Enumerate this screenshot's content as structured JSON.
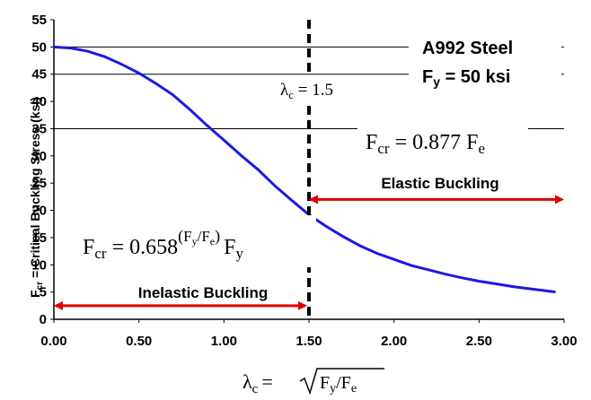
{
  "chart_data": {
    "type": "line",
    "xlim": [
      0,
      3.0
    ],
    "ylim": [
      0,
      55
    ],
    "x_ticks": [
      "0.00",
      "0.50",
      "1.00",
      "1.50",
      "2.00",
      "2.50",
      "3.00"
    ],
    "y_ticks": [
      "0",
      "5",
      "10",
      "15",
      "20",
      "25",
      "30",
      "35",
      "40",
      "45",
      "50",
      "55"
    ],
    "gridlines_y": [
      35,
      45,
      50
    ],
    "grid": "horizontal lines at 35, 45, 50",
    "ylabel_main": "F",
    "ylabel_sub": "cr",
    "ylabel_rest": " = Critical Buckling Stress (ksi)",
    "xlabel_lambda": "λ",
    "xlabel_sub": "c",
    "xlabel_eq": "=",
    "xlabel_radicand_f1": "F",
    "xlabel_radicand_s1": "y",
    "xlabel_radicand_mid": "/F",
    "xlabel_radicand_s2": "e",
    "material_title": "A992 Steel",
    "fy_label_main": "F",
    "fy_label_sub": "y",
    "fy_label_value": " = 50 ksi",
    "divider_label_lambda": "λ",
    "divider_label_sub": "c",
    "divider_label_value": " = 1.5",
    "divider_x": 1.5,
    "elastic_eq_f": "F",
    "elastic_eq_sub": "cr",
    "elastic_eq_rhs": " = 0.877 F",
    "elastic_eq_rhs_sub": "e",
    "inelastic_eq_f": "F",
    "inelastic_eq_sub": "cr",
    "inelastic_eq_rhs": " = 0.658",
    "inelastic_exp_open": "(",
    "inelastic_exp_f1": "F",
    "inelastic_exp_s1": "y",
    "inelastic_exp_mid": "/F",
    "inelastic_exp_s2": "e",
    "inelastic_exp_close": ")",
    "inelastic_tail_f": "F",
    "inelastic_tail_sub": "y",
    "elastic_region_label": "Elastic Buckling",
    "elastic_region_x": [
      1.5,
      3.0
    ],
    "elastic_region_y": 22,
    "inelastic_region_label": "Inelastic Buckling",
    "inelastic_region_x": [
      0.0,
      1.5
    ],
    "inelastic_region_y": 2.5,
    "Fy": 50,
    "curve_x": [
      0.0,
      0.1,
      0.2,
      0.3,
      0.4,
      0.5,
      0.6,
      0.7,
      0.8,
      0.9,
      1.0,
      1.1,
      1.2,
      1.3,
      1.4,
      1.5,
      1.6,
      1.7,
      1.8,
      1.9,
      2.0,
      2.1,
      2.2,
      2.3,
      2.4,
      2.5,
      2.6,
      2.7,
      2.8,
      2.9,
      2.95
    ],
    "curve_y": [
      50.0,
      49.8,
      49.2,
      48.2,
      46.8,
      45.2,
      43.3,
      41.2,
      38.5,
      35.6,
      32.9,
      30.1,
      27.5,
      24.5,
      21.8,
      19.2,
      17.1,
      15.2,
      13.5,
      12.1,
      11.0,
      9.9,
      9.1,
      8.3,
      7.6,
      7.0,
      6.5,
      6.0,
      5.6,
      5.2,
      5.0
    ],
    "colors": {
      "curve": "#1a1ae6",
      "arrow": "#e00000",
      "divider": "#000000"
    }
  }
}
